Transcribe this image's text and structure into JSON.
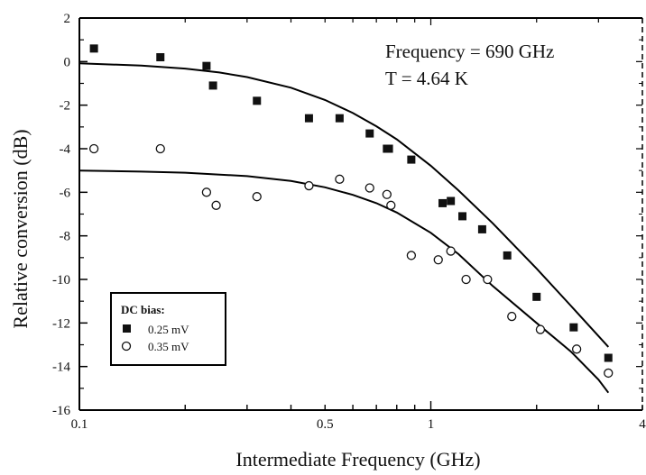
{
  "chart_data": {
    "type": "scatter",
    "xlabel": "Intermediate Frequency (GHz)",
    "ylabel": "Relative conversion (dB)",
    "x_scale": "log",
    "xlim": [
      0.1,
      4
    ],
    "ylim": [
      -16,
      2
    ],
    "x_ticks": [
      {
        "value": 0.1,
        "label": "0.1"
      },
      {
        "value": 0.5,
        "label": "0.5"
      },
      {
        "value": 1,
        "label": "1"
      },
      {
        "value": 4,
        "label": "4"
      }
    ],
    "y_ticks": [
      {
        "value": 2,
        "label": "2"
      },
      {
        "value": 0,
        "label": "0"
      },
      {
        "value": -2,
        "label": "-2"
      },
      {
        "value": -4,
        "label": "-4"
      },
      {
        "value": -6,
        "label": "-6"
      },
      {
        "value": -8,
        "label": "-8"
      },
      {
        "value": -10,
        "label": "-10"
      },
      {
        "value": -12,
        "label": "-12"
      },
      {
        "value": -14,
        "label": "-14"
      },
      {
        "value": -16,
        "label": "-16"
      }
    ],
    "annotations": [
      "Frequency = 690 GHz",
      "T = 4.64 K"
    ],
    "legend_title": "DC bias:",
    "legend_position": "bottom-left",
    "grid": false,
    "series": [
      {
        "name": "0.25 mV",
        "marker": "filled-square",
        "points": [
          [
            0.11,
            0.6
          ],
          [
            0.17,
            0.2
          ],
          [
            0.23,
            -0.2
          ],
          [
            0.24,
            -1.1
          ],
          [
            0.32,
            -1.8
          ],
          [
            0.45,
            -2.6
          ],
          [
            0.55,
            -2.6
          ],
          [
            0.67,
            -3.3
          ],
          [
            0.75,
            -4.0
          ],
          [
            0.76,
            -4.0
          ],
          [
            0.88,
            -4.5
          ],
          [
            1.08,
            -6.5
          ],
          [
            1.14,
            -6.4
          ],
          [
            1.23,
            -7.1
          ],
          [
            1.4,
            -7.7
          ],
          [
            1.65,
            -8.9
          ],
          [
            2.0,
            -10.8
          ],
          [
            2.55,
            -12.2
          ],
          [
            3.2,
            -13.6
          ]
        ],
        "fit": [
          [
            0.1,
            -0.08
          ],
          [
            0.15,
            -0.18
          ],
          [
            0.2,
            -0.32
          ],
          [
            0.25,
            -0.5
          ],
          [
            0.3,
            -0.71
          ],
          [
            0.4,
            -1.2
          ],
          [
            0.5,
            -1.76
          ],
          [
            0.6,
            -2.36
          ],
          [
            0.7,
            -2.97
          ],
          [
            0.8,
            -3.57
          ],
          [
            1.0,
            -4.78
          ],
          [
            1.2,
            -5.92
          ],
          [
            1.5,
            -7.42
          ],
          [
            2.0,
            -9.5
          ],
          [
            2.5,
            -11.2
          ],
          [
            3.0,
            -12.6
          ],
          [
            3.2,
            -13.1
          ]
        ]
      },
      {
        "name": "0.35 mV",
        "marker": "open-circle",
        "points": [
          [
            0.11,
            -4.0
          ],
          [
            0.17,
            -4.0
          ],
          [
            0.23,
            -6.0
          ],
          [
            0.245,
            -6.6
          ],
          [
            0.32,
            -6.2
          ],
          [
            0.45,
            -5.7
          ],
          [
            0.55,
            -5.4
          ],
          [
            0.67,
            -5.8
          ],
          [
            0.75,
            -6.1
          ],
          [
            0.77,
            -6.6
          ],
          [
            0.88,
            -8.9
          ],
          [
            1.05,
            -9.1
          ],
          [
            1.14,
            -8.7
          ],
          [
            1.26,
            -10.0
          ],
          [
            1.45,
            -10.0
          ],
          [
            1.7,
            -11.7
          ],
          [
            2.05,
            -12.3
          ],
          [
            2.6,
            -13.2
          ],
          [
            3.2,
            -14.3
          ]
        ],
        "fit": [
          [
            0.1,
            -5.0
          ],
          [
            0.15,
            -5.05
          ],
          [
            0.2,
            -5.1
          ],
          [
            0.3,
            -5.26
          ],
          [
            0.4,
            -5.48
          ],
          [
            0.5,
            -5.77
          ],
          [
            0.6,
            -6.12
          ],
          [
            0.7,
            -6.5
          ],
          [
            0.8,
            -6.93
          ],
          [
            1.0,
            -7.86
          ],
          [
            1.2,
            -8.84
          ],
          [
            1.5,
            -10.3
          ],
          [
            2.0,
            -12.0
          ],
          [
            2.5,
            -13.3
          ],
          [
            3.0,
            -14.6
          ],
          [
            3.2,
            -15.2
          ]
        ]
      }
    ]
  }
}
